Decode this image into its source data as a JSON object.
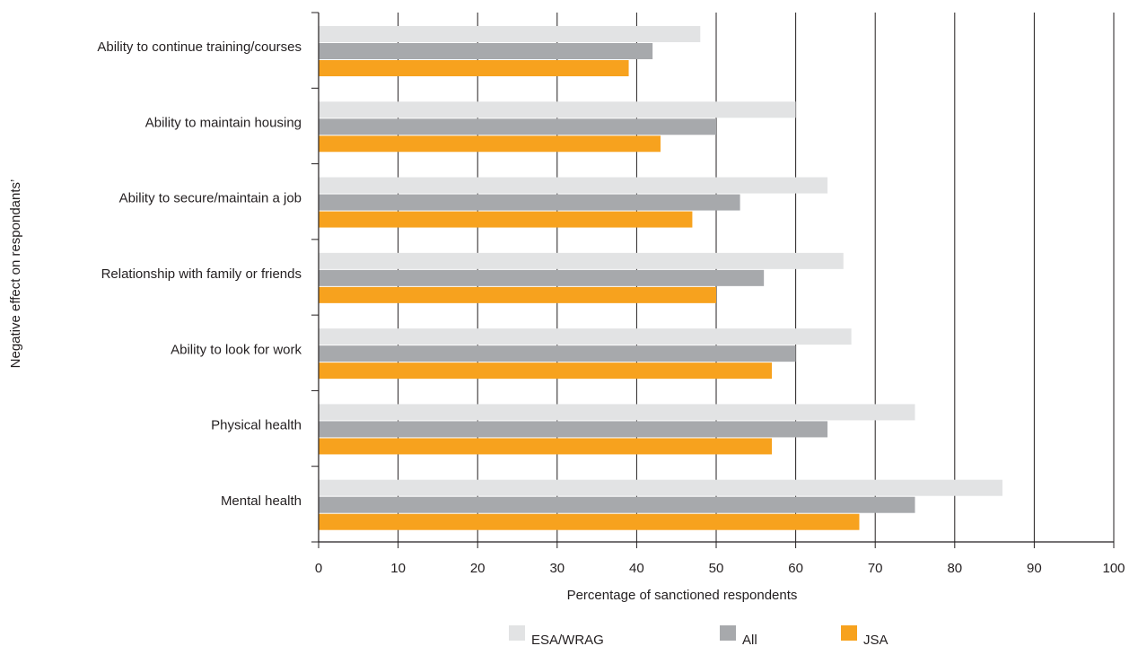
{
  "chart_data": {
    "type": "bar",
    "orientation": "horizontal",
    "title": "",
    "xlabel": "Percentage of sanctioned respondents",
    "ylabel": "Negative effect on respondants’",
    "xlim": [
      0,
      100
    ],
    "xticks": [
      "0",
      "10",
      "20",
      "30",
      "40",
      "50",
      "60",
      "70",
      "80",
      "90",
      "100"
    ],
    "grid": "vertical",
    "legend_position": "bottom",
    "categories": [
      "Ability to continue training/courses",
      "Ability to maintain housing",
      "Ability to secure/maintain a job",
      "Relationship with family or friends",
      "Ability to look for work",
      "Physical health",
      "Mental health"
    ],
    "series": [
      {
        "name": "ESA/WRAG",
        "color": "#e2e3e4",
        "values": [
          48,
          60,
          64,
          66,
          67,
          75,
          86
        ]
      },
      {
        "name": "All",
        "color": "#a7a9ac",
        "values": [
          42,
          50,
          53,
          56,
          60,
          64,
          75
        ]
      },
      {
        "name": "JSA",
        "color": "#f7a21e",
        "values": [
          39,
          43,
          47,
          50,
          57,
          57,
          68
        ]
      }
    ]
  }
}
